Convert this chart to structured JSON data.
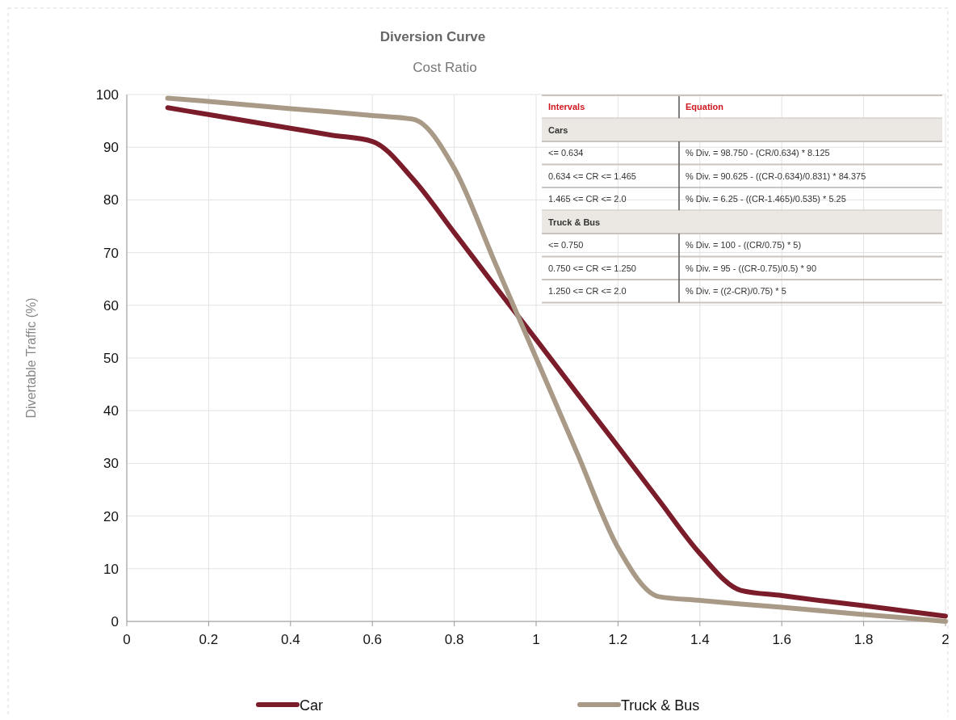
{
  "chart_data": {
    "type": "line",
    "title": "Diversion Curve",
    "subtitle": "Cost Ratio",
    "ylabel": "Divertable Traffic (%)",
    "x": [
      0.1,
      0.2,
      0.3,
      0.4,
      0.5,
      0.6,
      0.7,
      0.8,
      0.9,
      1.0,
      1.1,
      1.2,
      1.3,
      1.4,
      1.5,
      1.6,
      1.7,
      1.8,
      1.9,
      2.0
    ],
    "series": [
      {
        "name": "Car",
        "color": "#7b1c2a",
        "values": [
          97.5,
          96.2,
          94.9,
          93.6,
          92.3,
          91.1,
          83.9,
          73.8,
          63.6,
          53.5,
          43.3,
          33.2,
          23.0,
          12.9,
          5.9,
          4.9,
          3.9,
          3.0,
          2.0,
          1.0
        ]
      },
      {
        "name": "Truck & Bus",
        "color": "#a89a86",
        "values": [
          99.3,
          98.7,
          98.0,
          97.3,
          96.7,
          96.0,
          95.3,
          86.0,
          68.0,
          50.0,
          32.0,
          14.0,
          4.7,
          4.0,
          3.3,
          2.7,
          2.0,
          1.3,
          0.7,
          0.0
        ]
      }
    ],
    "xlim": [
      0,
      2
    ],
    "xticks": [
      0,
      0.2,
      0.4,
      0.6,
      0.8,
      1,
      1.2,
      1.4,
      1.6,
      1.8,
      2
    ],
    "ylim": [
      0,
      100
    ],
    "yticks": [
      0,
      10,
      20,
      30,
      40,
      50,
      60,
      70,
      80,
      90,
      100
    ],
    "grid": true,
    "legend": "bottom",
    "line_style": "solid",
    "annotations": [
      "Intervals",
      "Equation",
      "Cars",
      "<= 0.634",
      "% Div. = 98.750 - (CR/0.634) * 8.125",
      "0.634 <= CR <= 1.465",
      "% Div. = 90.625 - ((CR-0.634)/0.831) * 84.375",
      "1.465 <= CR <= 2.0",
      "% Div. = 6.25 - ((CR-1.465)/0.535) * 5.25",
      "Truck & Bus",
      "<= 0.750",
      "% Div. = 100 - ((CR/0.75) * 5)",
      "0.750 <= CR <= 1.250",
      "% Div. = 95 - ((CR-0.75)/0.5) * 90",
      "1.250 <= CR <= 2.0",
      "% Div. = ((2-CR)/0.75) * 5"
    ]
  }
}
